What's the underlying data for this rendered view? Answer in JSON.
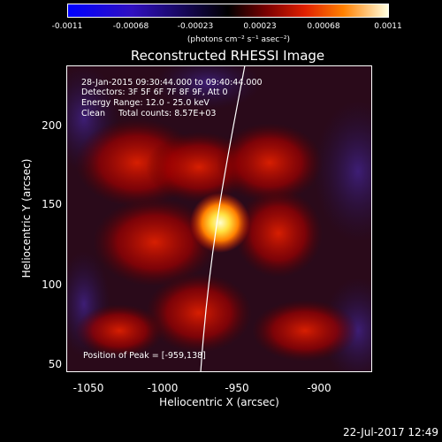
{
  "colorbar": {
    "ticks": [
      "-0.0011",
      "-0.00068",
      "-0.00023",
      "0.00023",
      "0.00068",
      "0.0011"
    ],
    "unit": "(photons cm⁻² s⁻¹ asec⁻²)"
  },
  "image": {
    "title": "Reconstructed RHESSI Image",
    "info": {
      "time": "28-Jan-2015 09:30:44.000 to 09:40:44.000",
      "detectors": "Detectors: 3F 5F 6F 7F 8F 9F, Att 0",
      "energy": "Energy Range: 12.0 - 25.0 keV",
      "clean": "Clean     Total counts: 8.57E+03"
    },
    "peak": "Position of Peak = [-959,138]"
  },
  "axes": {
    "xlabel": "Heliocentric X (arcsec)",
    "ylabel": "Heliocentric Y (arcsec)",
    "xticks": [
      "-1050",
      "-1000",
      "-950",
      "-900"
    ],
    "yticks": [
      "200",
      "150",
      "100",
      "50"
    ]
  },
  "timestamp": "22-Jul-2017 12:49",
  "colors": {
    "cb_start": "#0000ff",
    "cb_mid": "#000000",
    "cb_end": "#ffffe0",
    "limb": "#ffffff"
  }
}
